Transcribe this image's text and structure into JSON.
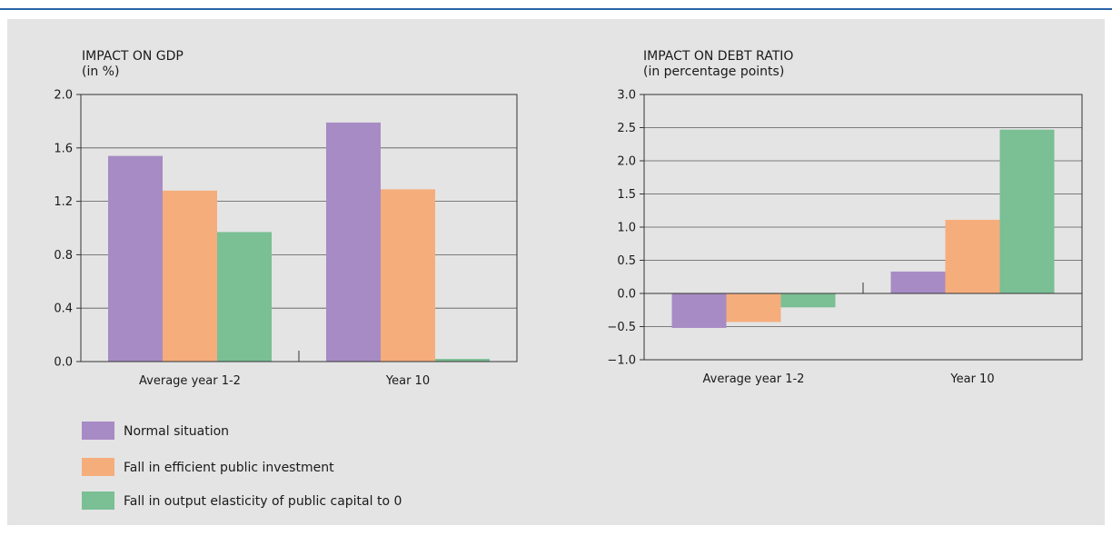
{
  "colors": {
    "normal": "#a78bc4",
    "fall_investment": "#f5ad7c",
    "fall_elasticity": "#7bbf95",
    "rule": "#2a64a8",
    "panel": "#e4e4e4"
  },
  "legend": [
    {
      "label": "Normal situation",
      "color": "#a78bc4"
    },
    {
      "label": "Fall in efficient public investment",
      "color": "#f5ad7c"
    },
    {
      "label": "Fall in output elasticity of public capital to 0",
      "color": "#7bbf95"
    }
  ],
  "chart_data": [
    {
      "type": "bar",
      "title": "IMPACT ON GDP",
      "subtitle": "(in %)",
      "categories": [
        "Average year 1-2",
        "Year 10"
      ],
      "series": [
        {
          "name": "Normal situation",
          "values": [
            1.54,
            1.79
          ]
        },
        {
          "name": "Fall in efficient public investment",
          "values": [
            1.28,
            1.29
          ]
        },
        {
          "name": "Fall in output elasticity of public capital to 0",
          "values": [
            0.97,
            0.02
          ]
        }
      ],
      "ylim": [
        0.0,
        2.0
      ],
      "yticks": [
        "0.0",
        "0.4",
        "0.8",
        "1.2",
        "1.6",
        "2.0"
      ],
      "grid": true
    },
    {
      "type": "bar",
      "title": "IMPACT ON DEBT RATIO",
      "subtitle": "(in percentage points)",
      "categories": [
        "Average year 1-2",
        "Year 10"
      ],
      "series": [
        {
          "name": "Normal situation",
          "values": [
            -0.52,
            0.33
          ]
        },
        {
          "name": "Fall in efficient public investment",
          "values": [
            -0.43,
            1.11
          ]
        },
        {
          "name": "Fall in output elasticity of public capital to 0",
          "values": [
            -0.21,
            2.47
          ]
        }
      ],
      "ylim": [
        -1.0,
        3.0
      ],
      "yticks": [
        "−1.0",
        "−0.5",
        "0.0",
        "0.5",
        "1.0",
        "1.5",
        "2.0",
        "2.5",
        "3.0"
      ],
      "grid": true
    }
  ]
}
